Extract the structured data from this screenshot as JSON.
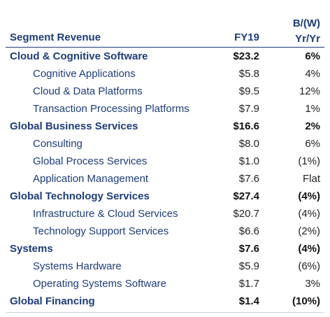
{
  "header": {
    "label": "Segment Revenue",
    "fy_label": "FY19",
    "change_label_line1": "B/(W)",
    "change_label_line2": "Yr/Yr"
  },
  "rows": [
    {
      "kind": "seg",
      "name": "Cloud & Cognitive Software",
      "value": "$23.2",
      "change": "6%"
    },
    {
      "kind": "sub",
      "name": "Cognitive Applications",
      "value": "$5.8",
      "change": "4%"
    },
    {
      "kind": "sub",
      "name": "Cloud & Data Platforms",
      "value": "$9.5",
      "change": "12%"
    },
    {
      "kind": "sub",
      "name": "Transaction Processing Platforms",
      "value": "$7.9",
      "change": "1%"
    },
    {
      "kind": "seg",
      "name": "Global Business Services",
      "value": "$16.6",
      "change": "2%"
    },
    {
      "kind": "sub",
      "name": "Consulting",
      "value": "$8.0",
      "change": "6%"
    },
    {
      "kind": "sub",
      "name": "Global Process Services",
      "value": "$1.0",
      "change": "(1%)"
    },
    {
      "kind": "sub",
      "name": "Application Management",
      "value": "$7.6",
      "change": "Flat"
    },
    {
      "kind": "seg",
      "name": "Global Technology Services",
      "value": "$27.4",
      "change": "(4%)"
    },
    {
      "kind": "sub",
      "name": "Infrastructure & Cloud Services",
      "value": "$20.7",
      "change": "(4%)"
    },
    {
      "kind": "sub",
      "name": "Technology Support Services",
      "value": "$6.6",
      "change": "(2%)"
    },
    {
      "kind": "seg",
      "name": "Systems",
      "value": "$7.6",
      "change": "(4%)"
    },
    {
      "kind": "sub",
      "name": "Systems Hardware",
      "value": "$5.9",
      "change": "(6%)"
    },
    {
      "kind": "sub",
      "name": "Operating Systems Software",
      "value": "$1.7",
      "change": "3%"
    },
    {
      "kind": "seg",
      "name": "Global Financing",
      "value": "$1.4",
      "change": "(10%)"
    }
  ]
}
